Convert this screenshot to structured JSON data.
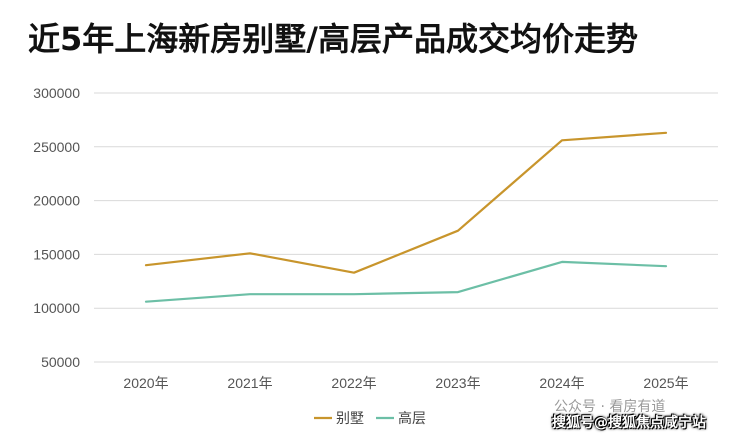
{
  "chart_data": {
    "type": "line",
    "title": "近5年上海新房别墅/高层产品成交均价走势",
    "xlabel": "",
    "ylabel": "",
    "categories": [
      "2020年",
      "2021年",
      "2022年",
      "2023年",
      "2024年",
      "2025年"
    ],
    "ylim": [
      50000,
      300000
    ],
    "yticks": [
      50000,
      100000,
      150000,
      200000,
      250000,
      300000
    ],
    "grid": true,
    "legend_position": "bottom",
    "series": [
      {
        "name": "别墅",
        "color": "#c8952c",
        "values": [
          140000,
          151000,
          133000,
          172000,
          256000,
          263000
        ]
      },
      {
        "name": "高层",
        "color": "#6cbfa6",
        "values": [
          106000,
          113000,
          113000,
          115000,
          143000,
          139000
        ]
      }
    ]
  },
  "watermark": {
    "line1": "公众号 · 看房有道",
    "line2": "搜狐号@搜狐焦点咸宁站"
  }
}
